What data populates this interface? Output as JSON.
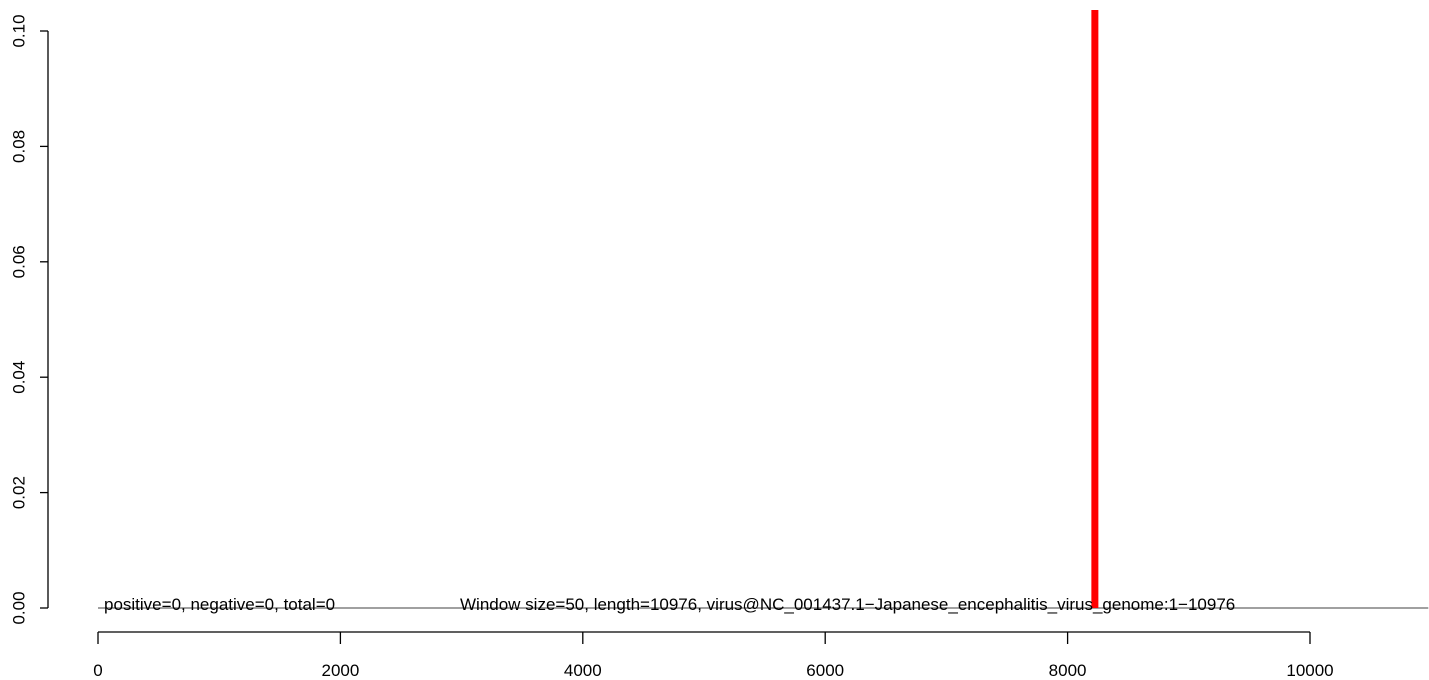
{
  "chart_data": {
    "type": "bar",
    "title": "",
    "xlabel": "",
    "ylabel": "",
    "xlim": [
      0,
      11200
    ],
    "ylim": [
      0,
      0.1
    ],
    "x_ticks": [
      0,
      2000,
      4000,
      6000,
      8000,
      10000
    ],
    "x_tick_labels": [
      "0",
      "2000",
      "4000",
      "6000",
      "8000",
      "10000"
    ],
    "y_ticks": [
      0,
      0.02,
      0.04,
      0.06,
      0.08,
      0.1
    ],
    "y_tick_labels": [
      "0.00",
      "0.02",
      "0.04",
      "0.06",
      "0.08",
      "0.10"
    ],
    "baseline": {
      "from": 0,
      "to": 10976,
      "y": 0
    },
    "bars": [
      {
        "x": 8225,
        "value": 0.1,
        "color": "#ff0000"
      }
    ],
    "annotations": {
      "counts": "positive=0, negative=0, total=0",
      "window": "Window size=50, length=10976, virus@NC_001437.1−Japanese_encephalitis_virus_genome:1−10976"
    },
    "grid": false
  }
}
